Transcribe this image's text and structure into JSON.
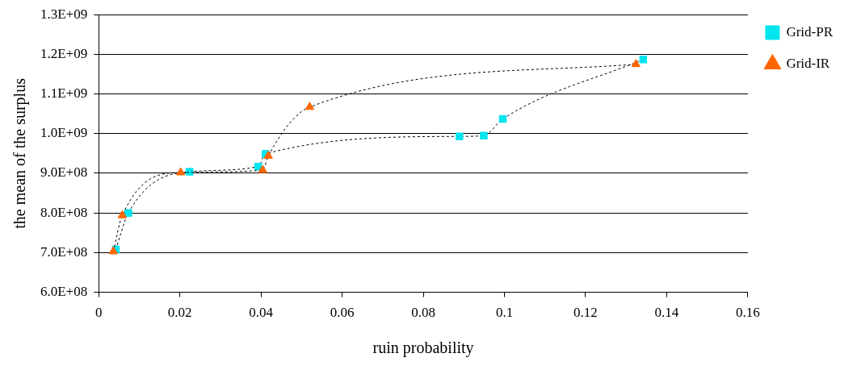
{
  "chart_data": {
    "type": "line",
    "xlabel": "ruin probability",
    "ylabel": "the mean of the surplus",
    "series": [
      {
        "name": "Grid-PR",
        "color": "#00e5ee",
        "marker": "square",
        "x": [
          0.0042,
          0.0073,
          0.0224,
          0.0393,
          0.0411,
          0.0889,
          0.0949,
          0.0996,
          0.1342
        ],
        "values": [
          708000000,
          800000000,
          904000000,
          917000000,
          949000000,
          993000000,
          995000000,
          1037000000,
          1187000000
        ]
      },
      {
        "name": "Grid-IR",
        "color": "#ff6600",
        "marker": "triangle",
        "x": [
          0.0036,
          0.0058,
          0.0202,
          0.0404,
          0.0418,
          0.052,
          0.1324
        ],
        "values": [
          703000000,
          794000000,
          902000000,
          908000000,
          944000000,
          1067000000,
          1175000000
        ]
      }
    ],
    "xlim": [
      0,
      0.16
    ],
    "xticks": [
      0,
      0.02,
      0.04,
      0.06,
      0.08,
      0.1,
      0.12,
      0.14,
      0.16
    ],
    "ylim": [
      600000000,
      1300000000
    ],
    "yticks": [
      {
        "value": 600000000,
        "label": "6.0E+08"
      },
      {
        "value": 700000000,
        "label": "7.0E+08"
      },
      {
        "value": 800000000,
        "label": "8.0E+08"
      },
      {
        "value": 900000000,
        "label": "9.0E+08"
      },
      {
        "value": 1000000000,
        "label": "1.0E+09"
      },
      {
        "value": 1100000000,
        "label": "1.1E+09"
      },
      {
        "value": 1200000000,
        "label": "1.2E+09"
      },
      {
        "value": 1300000000,
        "label": "1.3E+09"
      }
    ],
    "grid": "y",
    "legend": "right",
    "line_style": "dashed"
  }
}
